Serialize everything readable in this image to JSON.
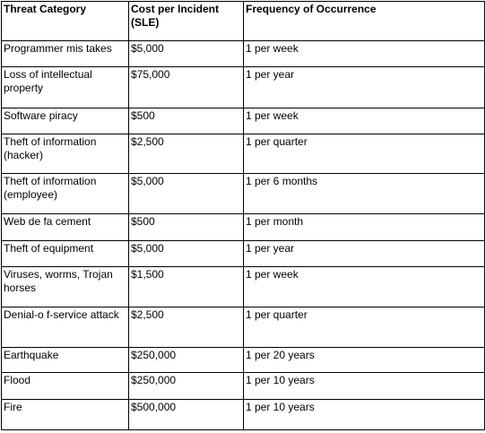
{
  "table": {
    "headers": [
      "Threat Category",
      "Cost per Incident (SLE)",
      "Frequency of Occurrence"
    ],
    "rows": [
      [
        "Programmer mis takes",
        "$5,000",
        "1 per week"
      ],
      [
        "Loss of intellectual property",
        "$75,000",
        "1 per year"
      ],
      [
        "Software piracy",
        "$500",
        "1 per week"
      ],
      [
        "Theft of information (hacker)",
        "$2,500",
        "1 per quarter"
      ],
      [
        "Theft of information (employee)",
        "$5,000",
        "1 per 6 months"
      ],
      [
        "Web de fa cement",
        "$500",
        "1 per month"
      ],
      [
        "Theft of equipment",
        "$5,000",
        "1 per year"
      ],
      [
        "Viruses, worms, Trojan horses",
        "$1,500",
        "1 per week"
      ],
      [
        "Denial-o f-service attack",
        "$2,500",
        "1 per quarter"
      ],
      [
        "Earthquake",
        "$250,000",
        "1 per 20 years"
      ],
      [
        "Flood",
        "$250,000",
        "1 per 10 years"
      ],
      [
        "Fire",
        "$500,000",
        "1 per 10 years"
      ]
    ]
  }
}
